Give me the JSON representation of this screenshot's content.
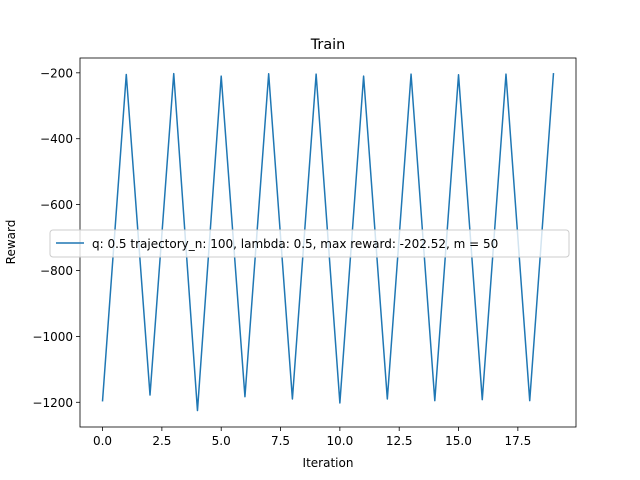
{
  "chart_data": {
    "type": "line",
    "title": "Train",
    "xlabel": "Iteration",
    "ylabel": "Reward",
    "xlim": [
      -0.95,
      19.95
    ],
    "ylim": [
      -1275,
      -155
    ],
    "xticks": [
      0.0,
      2.5,
      5.0,
      7.5,
      10.0,
      12.5,
      15.0,
      17.5
    ],
    "xtick_labels": [
      "0.0",
      "2.5",
      "5.0",
      "7.5",
      "10.0",
      "12.5",
      "15.0",
      "17.5"
    ],
    "yticks": [
      -200,
      -400,
      -600,
      -800,
      -1000,
      -1200
    ],
    "ytick_labels": [
      "−200",
      "−400",
      "−600",
      "−800",
      "−1000",
      "−1200"
    ],
    "grid": false,
    "legend_position": "center-left",
    "series": [
      {
        "name": "q: 0.5 trajectory_n: 100, lambda: 0.5, max reward: -202.52, m = 50",
        "color": "#1f77b4",
        "x": [
          0,
          1,
          2,
          3,
          4,
          5,
          6,
          7,
          8,
          9,
          10,
          11,
          12,
          13,
          14,
          15,
          16,
          17,
          18,
          19
        ],
        "y": [
          -1195,
          -205,
          -1178,
          -202.52,
          -1225,
          -210,
          -1183,
          -203,
          -1190,
          -204,
          -1202,
          -210,
          -1190,
          -204,
          -1195,
          -206,
          -1192,
          -204,
          -1195,
          -203
        ]
      }
    ]
  }
}
